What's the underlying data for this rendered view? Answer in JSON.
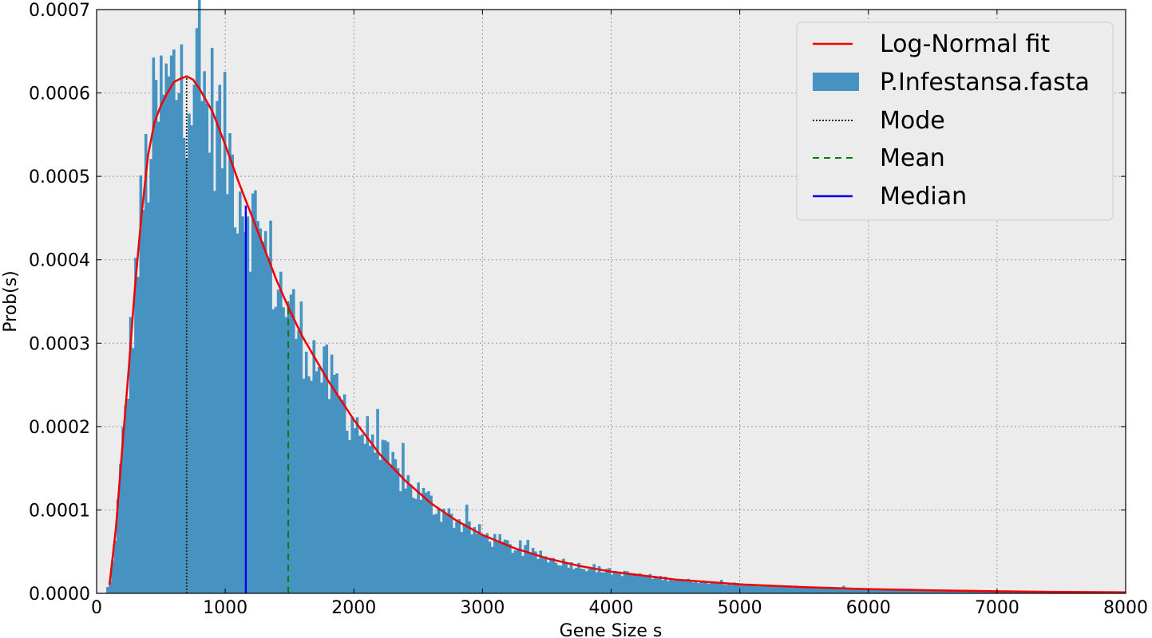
{
  "chart_data": {
    "type": "bar",
    "xlabel": "Gene Size s",
    "ylabel": "Prob(s)",
    "xlim": [
      0,
      8000
    ],
    "ylim": [
      0,
      0.0007
    ],
    "grid": true,
    "legend_position": "top-right",
    "x_ticks": [
      "0",
      "1000",
      "2000",
      "3000",
      "4000",
      "5000",
      "6000",
      "7000",
      "8000"
    ],
    "y_ticks": [
      "0.0000",
      "0.0001",
      "0.0002",
      "0.0003",
      "0.0004",
      "0.0005",
      "0.0006",
      "0.0007"
    ],
    "histogram": {
      "name": "P.Infestansa.fasta",
      "color": "#4693c2",
      "bin_start": 75,
      "bin_width": 19.8,
      "bin_count": 400
    },
    "fit": {
      "name": "Log-Normal fit",
      "color": "#ee0000",
      "x": [
        100,
        150,
        200,
        250,
        300,
        350,
        400,
        450,
        500,
        550,
        600,
        650,
        700,
        750,
        800,
        900,
        1000,
        1100,
        1200,
        1300,
        1400,
        1500,
        1600,
        1800,
        2000,
        2200,
        2400,
        2600,
        2800,
        3000,
        3250,
        3500,
        3750,
        4000,
        4500,
        5000,
        5500,
        6000,
        6500,
        7000,
        7500,
        8000
      ],
      "y": [
        1e-05,
        7.8e-05,
        0.000175,
        0.00027,
        0.00037,
        0.000455,
        0.000525,
        0.000565,
        0.000585,
        0.0006,
        0.000613,
        0.000617,
        0.00062,
        0.000616,
        0.000605,
        0.000578,
        0.000538,
        0.000495,
        0.000455,
        0.000415,
        0.000375,
        0.00034,
        0.000308,
        0.000255,
        0.000208,
        0.000167,
        0.000135,
        0.000108,
        8.7e-05,
        7e-05,
        5.4e-05,
        4.2e-05,
        3.3e-05,
        2.6e-05,
        1.65e-05,
        1.08e-05,
        7.5e-06,
        5.1e-06,
        3.6e-06,
        2.5e-06,
        1.7e-06,
        1.2e-06
      ]
    },
    "mode": {
      "name": "Mode",
      "x": 700,
      "y": 0.00062,
      "color": "#222222"
    },
    "mean": {
      "name": "Mean",
      "x": 1490,
      "y": 0.00035,
      "color": "#008000"
    },
    "median": {
      "name": "Median",
      "x": 1160,
      "y": 0.000465,
      "color": "#0000ee"
    },
    "legend": [
      "Log-Normal fit",
      "P.Infestansa.fasta",
      "Mode",
      "Mean",
      "Median"
    ]
  }
}
